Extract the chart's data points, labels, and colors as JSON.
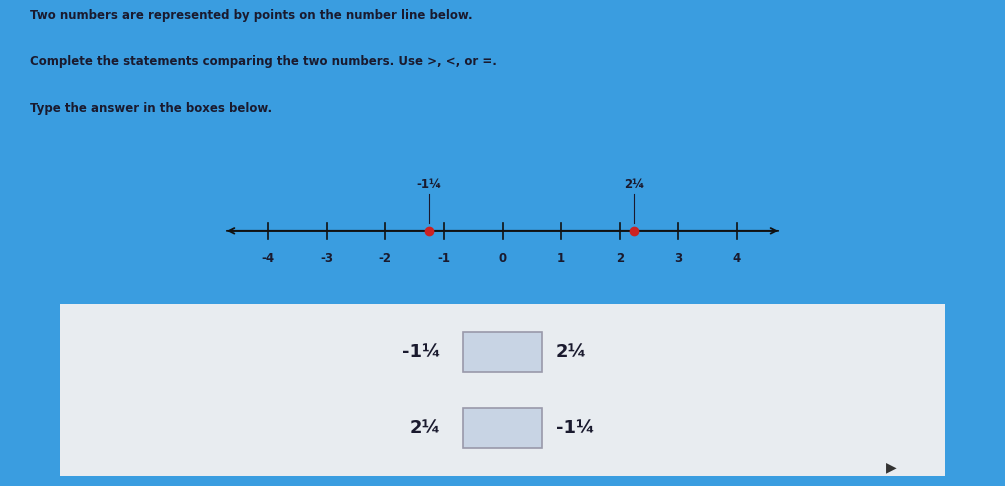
{
  "bg_color_blue": "#3a9de0",
  "bg_color_panel1": "#ccd9ea",
  "bg_color_panel2": "#e8ecf0",
  "separator_color": "#3a9de0",
  "text_color": "#1a1a2e",
  "title_lines": [
    "Two numbers are represented by points on the number line below.",
    "Complete the statements comparing the two numbers. Use >, <, or =.",
    "Type the answer in the boxes below."
  ],
  "number_line_ticks": [
    -4,
    -3,
    -2,
    -1,
    0,
    1,
    2,
    3,
    4
  ],
  "point1_value": -1.25,
  "point1_label": "-1¼",
  "point2_value": 2.25,
  "point2_label": "2¼",
  "point_color": "#cc2222",
  "line_color": "#111111",
  "statement1_left": "-1¼",
  "statement1_right": "2¼",
  "statement2_left": "2¼",
  "statement2_right": "-1¼",
  "box_border_color": "#9999aa",
  "box_fill_color": "#c8d4e4"
}
